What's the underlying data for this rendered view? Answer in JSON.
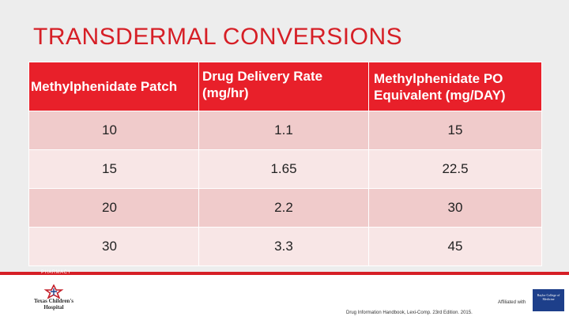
{
  "title": "TRANSDERMAL CONVERSIONS",
  "table": {
    "headers": [
      "Methylphenidate Patch",
      "Drug Delivery Rate (mg/hr)",
      "Methylphenidate PO Equivalent (mg/DAY)"
    ],
    "rows": [
      [
        "10",
        "1.1",
        "15"
      ],
      [
        "15",
        "1.65",
        "22.5"
      ],
      [
        "20",
        "2.2",
        "30"
      ],
      [
        "30",
        "3.3",
        "45"
      ]
    ]
  },
  "footer": {
    "section_label": "PHARMACY",
    "logo_text": "Texas Children's Hospital",
    "affiliation": "Affiliated with",
    "affiliation_badge": "Baylor College of Medicine",
    "citation": "Drug Information Handbook, Lexi-Comp. 23rd Edition. 2015."
  },
  "colors": {
    "accent": "#d61f26",
    "header_fill": "#e8202a",
    "row_odd": "#f0cbcb",
    "row_even": "#f8e6e6",
    "affiliate_blue": "#1d3f8a"
  },
  "icons": {
    "logo": "texas-childrens-star-icon"
  }
}
